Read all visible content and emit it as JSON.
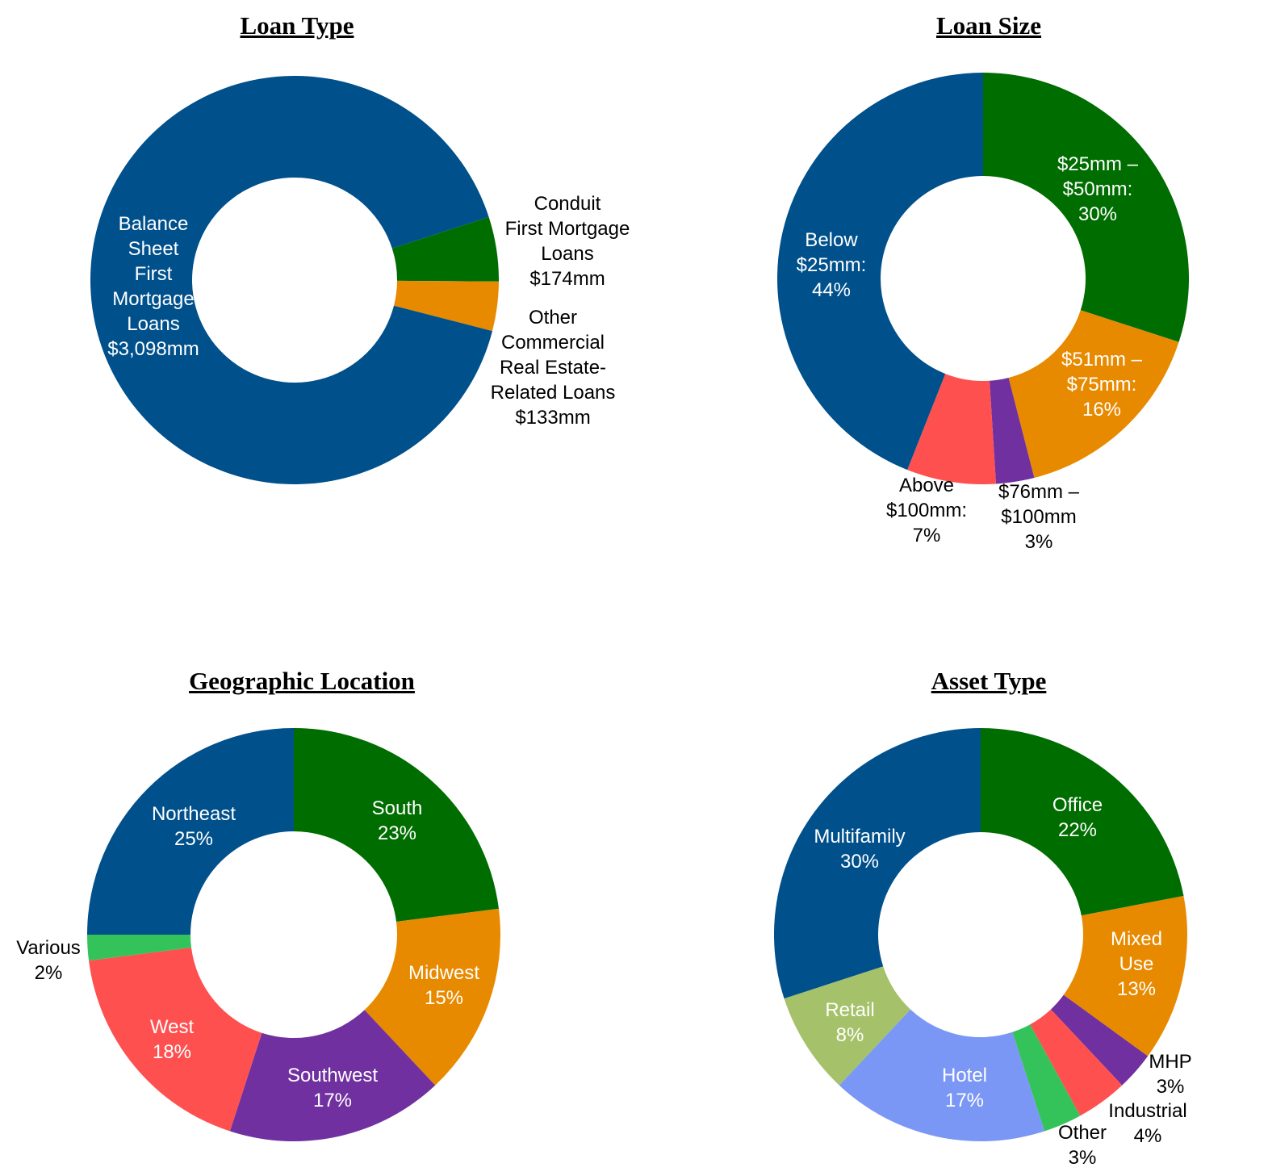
{
  "chart_data": [
    {
      "type": "donut",
      "title": "Loan Type",
      "categories": [
        "Conduit\nFirst Mortgage\nLoans",
        "Other\nCommercial\nReal Estate-\nRelated Loans",
        "Balance\nSheet\nFirst\nMortgage\nLoans"
      ],
      "values": [
        174,
        133,
        3098
      ],
      "value_labels": [
        "$174mm",
        "$133mm",
        "$3,098mm"
      ],
      "colors": [
        "#006d00",
        "#e88a00",
        "#00508c"
      ]
    },
    {
      "type": "donut",
      "title": "Loan Size",
      "categories": [
        "$25mm –\n$50mm:",
        "$51mm –\n$75mm:",
        "$76mm –\n$100mm",
        "Above\n$100mm:",
        "Below\n$25mm:"
      ],
      "values": [
        30,
        16,
        3,
        7,
        44
      ],
      "value_labels": [
        "30%",
        "16%",
        "3%",
        "7%",
        "44%"
      ],
      "colors": [
        "#006d00",
        "#e88a00",
        "#7030a0",
        "#ff5050",
        "#00508c"
      ]
    },
    {
      "type": "donut",
      "title": "Geographic Location",
      "categories": [
        "South",
        "Midwest",
        "Southwest",
        "West",
        "Various",
        "Northeast"
      ],
      "values": [
        23,
        15,
        17,
        18,
        2,
        25
      ],
      "value_labels": [
        "23%",
        "15%",
        "17%",
        "18%",
        "2%",
        "25%"
      ],
      "colors": [
        "#006d00",
        "#e88a00",
        "#7030a0",
        "#ff5050",
        "#33c35a",
        "#00508c"
      ]
    },
    {
      "type": "donut",
      "title": "Asset Type",
      "categories": [
        "Office",
        "Mixed\nUse",
        "MHP",
        "Industrial",
        "Other",
        "Hotel",
        "Retail",
        "Multifamily"
      ],
      "values": [
        22,
        13,
        3,
        4,
        3,
        17,
        8,
        30
      ],
      "value_labels": [
        "22%",
        "13%",
        "3%",
        "4%",
        "3%",
        "17%",
        "8%",
        "30%"
      ],
      "colors": [
        "#006d00",
        "#e88a00",
        "#7030a0",
        "#ff5050",
        "#33c35a",
        "#7b97f5",
        "#a5c26a",
        "#00508c"
      ]
    }
  ]
}
